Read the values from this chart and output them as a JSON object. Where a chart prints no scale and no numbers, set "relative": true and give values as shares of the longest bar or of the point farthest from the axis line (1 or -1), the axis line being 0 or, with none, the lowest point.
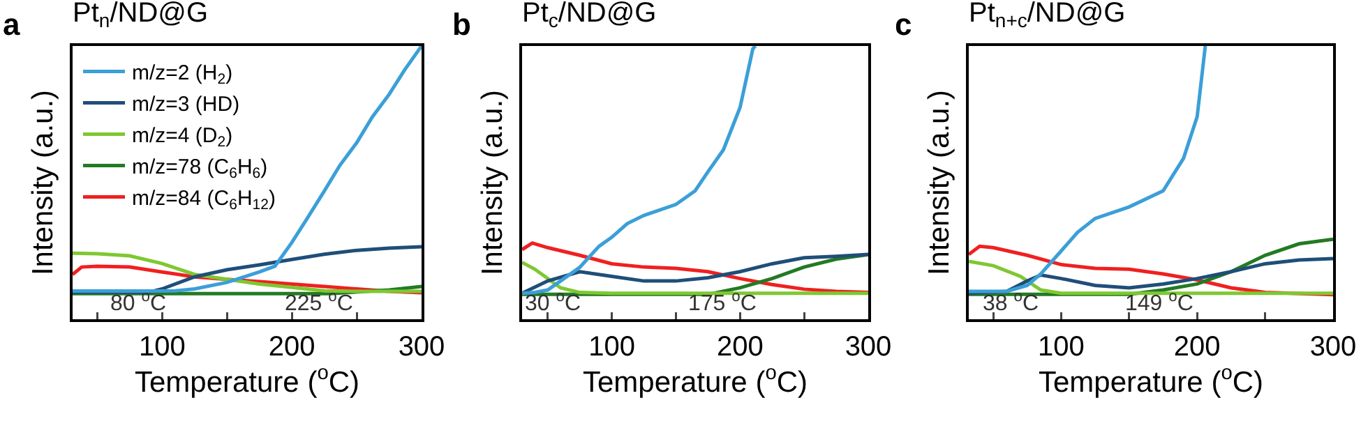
{
  "chart_data": [
    {
      "type": "line",
      "title": "Pt$_{n}$/ND@G",
      "xlabel": "Temperature ($^{o}$C)",
      "ylabel": "Intensity (a.u.)",
      "relative": true,
      "legend": "top left",
      "xlim": [
        31,
        300
      ],
      "xticks": [
        {
          "value": 50,
          "label": null
        },
        100,
        {
          "value": 150,
          "label": null
        },
        200,
        {
          "value": 250,
          "label": null
        },
        300
      ],
      "annotations": [
        "a",
        "80 $^{o}$C",
        "225 $^{o}$C"
      ],
      "series": [
        {
          "name": "m/z=2 (H$_{2}$)",
          "color": "#3b9fd8",
          "x": [
            31,
            60,
            90,
            110,
            125,
            150,
            175,
            187,
            200,
            212,
            225,
            237,
            250,
            262,
            275,
            287,
            300
          ],
          "values": [
            0.103,
            0.103,
            0.103,
            0.104,
            0.111,
            0.135,
            0.173,
            0.194,
            0.281,
            0.37,
            0.469,
            0.563,
            0.646,
            0.74,
            0.823,
            0.913,
            1
          ]
        },
        {
          "name": "m/z=3 (HD)",
          "color": "#1f4e79",
          "x": [
            31,
            60,
            90,
            100,
            125,
            150,
            175,
            200,
            225,
            250,
            275,
            300
          ],
          "values": [
            0.099,
            0.099,
            0.099,
            0.111,
            0.155,
            0.181,
            0.199,
            0.219,
            0.238,
            0.252,
            0.26,
            0.265
          ]
        },
        {
          "name": "m/z=4 (D$_{2}$)",
          "color": "#7ec832",
          "x": [
            31,
            50,
            75,
            100,
            125,
            150,
            175,
            200,
            225,
            250,
            300
          ],
          "values": [
            0.242,
            0.24,
            0.232,
            0.204,
            0.164,
            0.146,
            0.129,
            0.117,
            0.104,
            0.102,
            0.102
          ]
        },
        {
          "name": "m/z=78 (C$_{6}$H$_{6}$)",
          "color": "#237a23",
          "x": [
            31,
            150,
            230,
            275,
            300
          ],
          "values": [
            0.094,
            0.094,
            0.094,
            0.107,
            0.12
          ]
        },
        {
          "name": "m/z=84 (C$_{6}$H$_{12}$)",
          "color": "#f02020",
          "x": [
            31,
            38,
            50,
            75,
            100,
            125,
            150,
            175,
            200,
            225,
            250,
            275,
            300
          ],
          "values": [
            0.164,
            0.191,
            0.194,
            0.191,
            0.173,
            0.155,
            0.146,
            0.138,
            0.129,
            0.12,
            0.111,
            0.102,
            0.097
          ]
        }
      ]
    },
    {
      "type": "line",
      "title": "Pt$_{c}$/ND@G",
      "xlabel": "Temperature ($^{o}$C)",
      "ylabel": "Intensity (a.u.)",
      "relative": true,
      "xlim": [
        30,
        300
      ],
      "xticks": [
        {
          "value": 50,
          "label": null
        },
        100,
        {
          "value": 150,
          "label": null
        },
        200,
        {
          "value": 250,
          "label": null
        },
        300
      ],
      "annotations": [
        "b",
        "30 $^{o}$C",
        "175 $^{o}$C"
      ],
      "series": [
        {
          "color": "#3b9fd8",
          "x": [
            30,
            40,
            50,
            60,
            75,
            90,
            100,
            112,
            125,
            150,
            165,
            175,
            187,
            200,
            210,
            212
          ],
          "values": [
            0.095,
            0.098,
            0.107,
            0.14,
            0.19,
            0.267,
            0.3,
            0.35,
            0.38,
            0.42,
            0.47,
            0.54,
            0.62,
            0.775,
            0.99,
            1
          ]
        },
        {
          "color": "#1f4e79",
          "x": [
            30,
            50,
            75,
            100,
            125,
            150,
            175,
            200,
            225,
            250,
            275,
            300
          ],
          "values": [
            0.095,
            0.14,
            0.174,
            0.157,
            0.14,
            0.14,
            0.152,
            0.174,
            0.203,
            0.225,
            0.23,
            0.237
          ]
        },
        {
          "color": "#7ec832",
          "x": [
            30,
            40,
            50,
            60,
            75,
            100,
            200,
            300
          ],
          "values": [
            0.208,
            0.183,
            0.149,
            0.115,
            0.098,
            0.095,
            0.095,
            0.095
          ]
        },
        {
          "color": "#237a23",
          "x": [
            30,
            100,
            175,
            200,
            225,
            250,
            275,
            300
          ],
          "values": [
            0.091,
            0.091,
            0.091,
            0.115,
            0.149,
            0.191,
            0.22,
            0.237
          ]
        },
        {
          "color": "#f02020",
          "x": [
            30,
            38,
            50,
            75,
            100,
            125,
            150,
            175,
            200,
            225,
            250,
            275,
            300
          ],
          "values": [
            0.255,
            0.279,
            0.262,
            0.234,
            0.203,
            0.191,
            0.186,
            0.174,
            0.149,
            0.127,
            0.11,
            0.102,
            0.098
          ]
        }
      ]
    },
    {
      "type": "line",
      "title": "Pt$_{n+c}$/ND@G",
      "xlabel": "Temperature ($^{o}$C)",
      "ylabel": "Intensity (a.u.)",
      "relative": true,
      "xlim": [
        32,
        300
      ],
      "xticks": [
        {
          "value": 50,
          "label": null
        },
        100,
        {
          "value": 150,
          "label": null
        },
        200,
        {
          "value": 250,
          "label": null
        },
        300
      ],
      "annotations": [
        "c",
        "38 $^{o}$C",
        "149 $^{o}$C"
      ],
      "series": [
        {
          "color": "#3b9fd8",
          "x": [
            32,
            60,
            75,
            85,
            100,
            112,
            125,
            150,
            175,
            190,
            200,
            206
          ],
          "values": [
            0.102,
            0.102,
            0.124,
            0.166,
            0.25,
            0.318,
            0.369,
            0.411,
            0.47,
            0.589,
            0.741,
            1
          ]
        },
        {
          "color": "#1f4e79",
          "x": [
            32,
            60,
            75,
            85,
            100,
            125,
            150,
            175,
            200,
            225,
            250,
            275,
            300
          ],
          "values": [
            0.095,
            0.102,
            0.14,
            0.162,
            0.149,
            0.124,
            0.115,
            0.129,
            0.149,
            0.174,
            0.203,
            0.217,
            0.222
          ]
        },
        {
          "color": "#7ec832",
          "x": [
            32,
            50,
            70,
            85,
            100,
            200,
            300
          ],
          "values": [
            0.212,
            0.196,
            0.157,
            0.107,
            0.095,
            0.095,
            0.095
          ]
        },
        {
          "color": "#237a23",
          "x": [
            32,
            100,
            150,
            175,
            200,
            225,
            250,
            275,
            300
          ],
          "values": [
            0.091,
            0.091,
            0.091,
            0.107,
            0.129,
            0.174,
            0.234,
            0.276,
            0.293
          ]
        },
        {
          "color": "#f02020",
          "x": [
            32,
            40,
            50,
            75,
            100,
            125,
            150,
            175,
            200,
            225,
            250,
            300
          ],
          "values": [
            0.237,
            0.267,
            0.262,
            0.234,
            0.2,
            0.186,
            0.183,
            0.166,
            0.144,
            0.115,
            0.098,
            0.09
          ]
        }
      ]
    }
  ]
}
